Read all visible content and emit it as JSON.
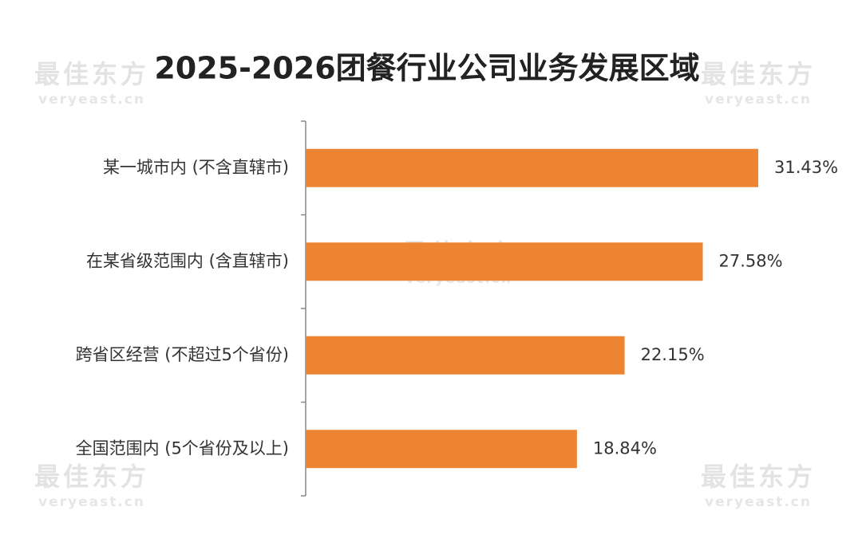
{
  "chart_data": {
    "type": "bar",
    "orientation": "horizontal",
    "title": "2025-2026团餐行业公司业务发展区域",
    "categories": [
      "某一城市内 (不含直辖市)",
      "在某省级范围内 (含直辖市)",
      "跨省区经营 (不超过5个省份)",
      "全国范围内 (5个省份及以上)"
    ],
    "values": [
      31.43,
      27.58,
      22.15,
      18.84
    ],
    "value_labels": [
      "31.43%",
      "27.58%",
      "22.15%",
      "18.84%"
    ],
    "color": "#ed8431"
  },
  "watermark": {
    "brand": "最佳东方",
    "url": "veryeast.cn"
  }
}
